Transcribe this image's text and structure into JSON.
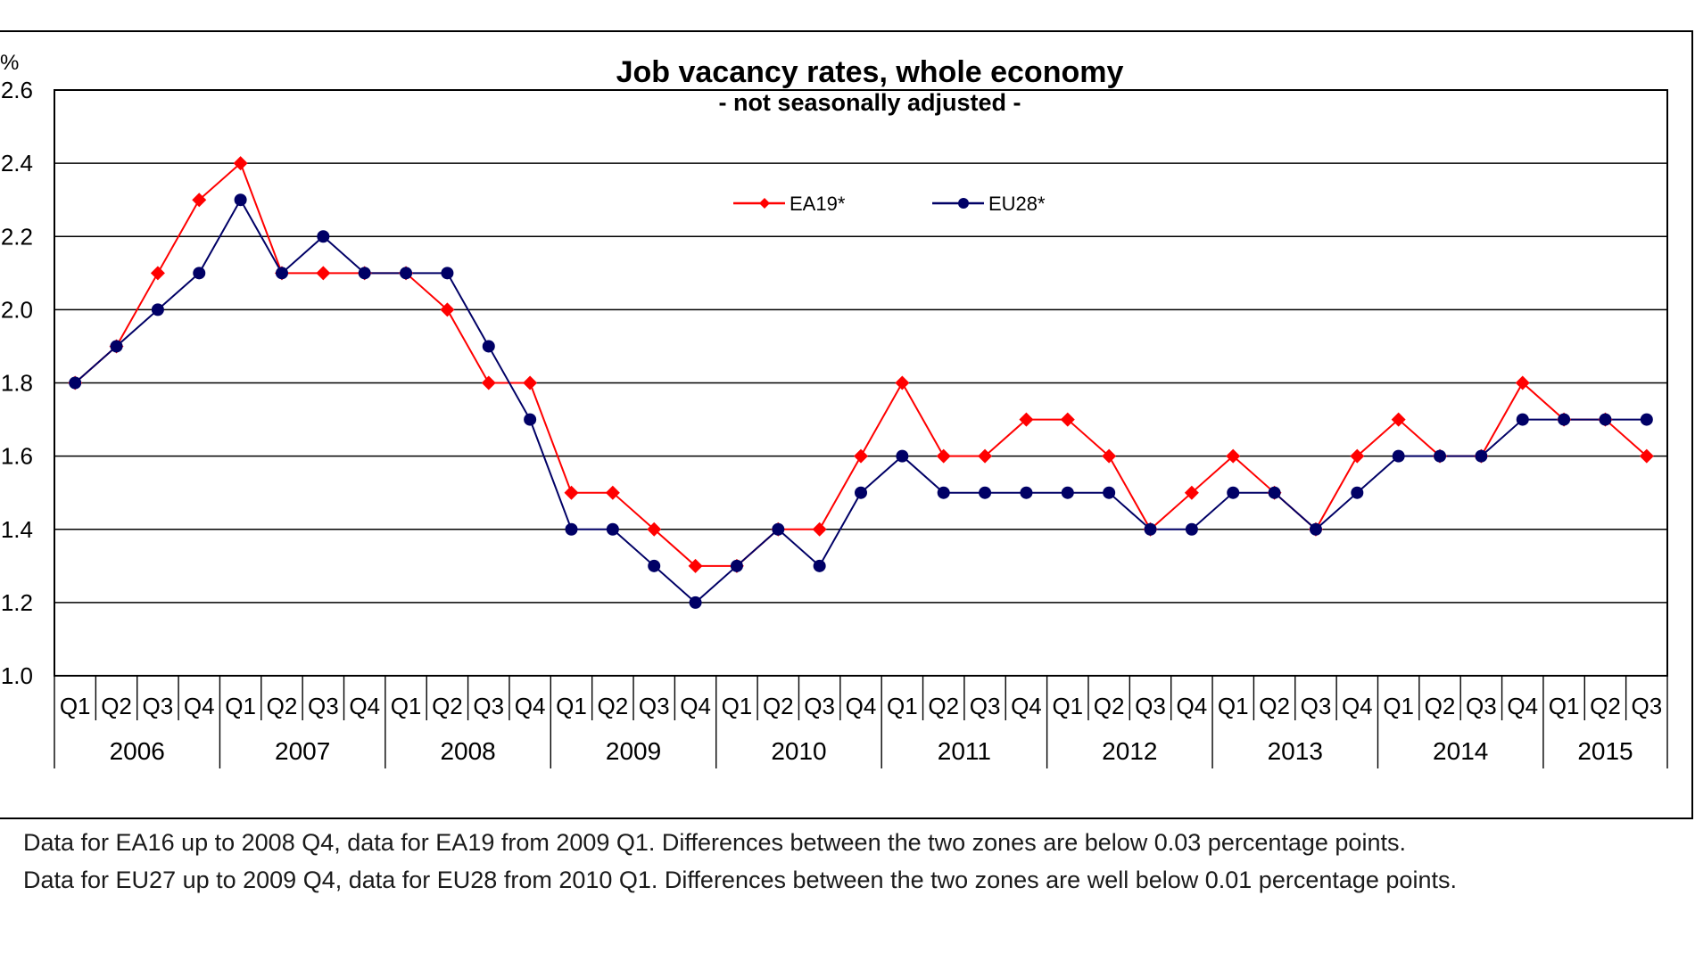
{
  "chart_data": {
    "type": "line",
    "title": "Job vacancy rates, whole economy",
    "subtitle": "- not seasonally adjusted -",
    "ylabel": "%",
    "ylim": [
      1.0,
      2.6
    ],
    "yticks": [
      "1.0",
      "1.2",
      "1.4",
      "1.6",
      "1.8",
      "2.0",
      "2.2",
      "2.4",
      "2.6"
    ],
    "grid": true,
    "legend_position": "top-center",
    "quarters": [
      "Q1",
      "Q2",
      "Q3",
      "Q4",
      "Q1",
      "Q2",
      "Q3",
      "Q4",
      "Q1",
      "Q2",
      "Q3",
      "Q4",
      "Q1",
      "Q2",
      "Q3",
      "Q4",
      "Q1",
      "Q2",
      "Q3",
      "Q4",
      "Q1",
      "Q2",
      "Q3",
      "Q4",
      "Q1",
      "Q2",
      "Q3",
      "Q4",
      "Q1",
      "Q2",
      "Q3",
      "Q4",
      "Q1",
      "Q2",
      "Q3",
      "Q4",
      "Q1",
      "Q2",
      "Q3"
    ],
    "years": [
      {
        "label": "2006",
        "count": 4
      },
      {
        "label": "2007",
        "count": 4
      },
      {
        "label": "2008",
        "count": 4
      },
      {
        "label": "2009",
        "count": 4
      },
      {
        "label": "2010",
        "count": 4
      },
      {
        "label": "2011",
        "count": 4
      },
      {
        "label": "2012",
        "count": 4
      },
      {
        "label": "2013",
        "count": 4
      },
      {
        "label": "2014",
        "count": 4
      },
      {
        "label": "2015",
        "count": 3
      }
    ],
    "series": [
      {
        "name": "EA19*",
        "color": "#ff0000",
        "marker": "diamond",
        "values": [
          1.8,
          1.9,
          2.1,
          2.3,
          2.4,
          2.1,
          2.1,
          2.1,
          2.1,
          2.0,
          1.8,
          1.8,
          1.5,
          1.5,
          1.4,
          1.3,
          1.3,
          1.4,
          1.4,
          1.6,
          1.8,
          1.6,
          1.6,
          1.7,
          1.7,
          1.6,
          1.4,
          1.5,
          1.6,
          1.5,
          1.4,
          1.6,
          1.7,
          1.6,
          1.6,
          1.8,
          1.7,
          1.7,
          1.6
        ]
      },
      {
        "name": "EU28*",
        "color": "#000066",
        "marker": "circle",
        "values": [
          1.8,
          1.9,
          2.0,
          2.1,
          2.3,
          2.1,
          2.2,
          2.1,
          2.1,
          2.1,
          1.9,
          1.7,
          1.4,
          1.4,
          1.3,
          1.2,
          1.3,
          1.4,
          1.3,
          1.5,
          1.6,
          1.5,
          1.5,
          1.5,
          1.5,
          1.5,
          1.4,
          1.4,
          1.5,
          1.5,
          1.4,
          1.5,
          1.6,
          1.6,
          1.6,
          1.7,
          1.7,
          1.7,
          1.7
        ]
      }
    ]
  },
  "notes": [
    "Data for EA16 up to 2008 Q4, data for EA19 from 2009 Q1. Differences between the two zones are below 0.03 percentage points.",
    "Data for EU27 up to 2009 Q4, data for EU28 from 2010 Q1. Differences between the two zones are well below 0.01 percentage points."
  ]
}
